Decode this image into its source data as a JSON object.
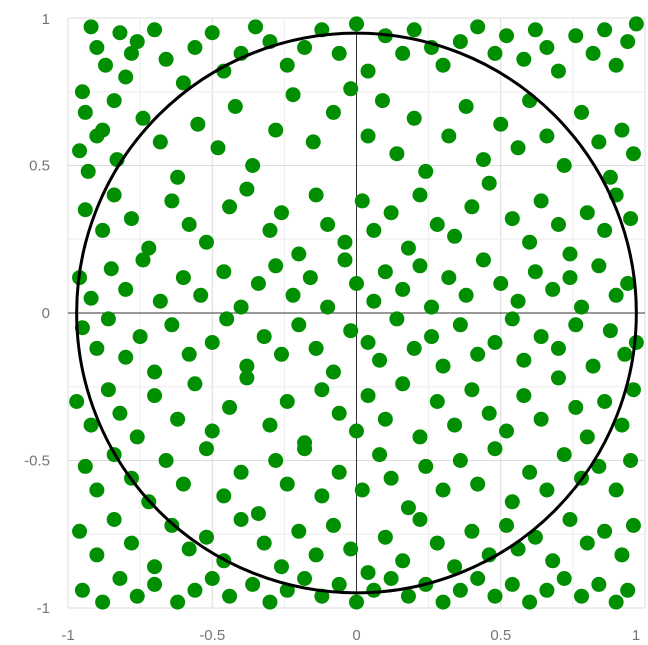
{
  "chart_data": {
    "type": "scatter",
    "title": "",
    "xlabel": "",
    "ylabel": "",
    "xlim": [
      -1,
      1
    ],
    "ylim": [
      -1,
      1
    ],
    "grid": true,
    "x_ticks": [
      {
        "value": -1,
        "label": "-1"
      },
      {
        "value": -0.5,
        "label": "-0.5"
      },
      {
        "value": 0,
        "label": "0"
      },
      {
        "value": 0.5,
        "label": "0.5"
      },
      {
        "value": 1,
        "label": "1"
      }
    ],
    "y_ticks": [
      {
        "value": 1,
        "label": "1"
      },
      {
        "value": 0.5,
        "label": "0.5"
      },
      {
        "value": 0,
        "label": "0"
      },
      {
        "value": -0.5,
        "label": "-0.5"
      },
      {
        "value": -1,
        "label": "-1"
      }
    ],
    "point_color": "#008f00",
    "circle": {
      "center": [
        0,
        0
      ],
      "radius": 0.97,
      "color": "#000000"
    },
    "series": [
      {
        "x": [
          -0.92,
          -0.9,
          -0.87,
          -0.82,
          -0.78,
          -0.95,
          -0.94,
          -0.9,
          -0.84,
          -0.8,
          -0.76,
          -0.7,
          -0.66,
          -0.6,
          -0.56,
          -0.5,
          -0.46,
          -0.4,
          -0.35,
          -0.3,
          -0.24,
          -0.18,
          -0.12,
          -0.06,
          0.0,
          0.04,
          0.1,
          0.16,
          0.2,
          0.26,
          0.3,
          0.36,
          0.42,
          0.48,
          0.52,
          0.58,
          0.62,
          0.66,
          0.7,
          0.76,
          0.82,
          0.86,
          0.9,
          0.94,
          0.97,
          -0.96,
          -0.93,
          -0.88,
          -0.83,
          -0.74,
          -0.68,
          -0.62,
          -0.55,
          -0.48,
          -0.42,
          -0.36,
          -0.28,
          -0.22,
          -0.15,
          -0.08,
          -0.02,
          0.04,
          0.09,
          0.14,
          0.2,
          0.24,
          0.32,
          0.38,
          0.44,
          0.5,
          0.56,
          0.6,
          0.66,
          0.72,
          0.78,
          0.84,
          0.88,
          0.92,
          0.96,
          -0.94,
          -0.88,
          -0.84,
          -0.78,
          -0.72,
          -0.64,
          -0.58,
          -0.52,
          -0.44,
          -0.38,
          -0.3,
          -0.26,
          -0.2,
          -0.14,
          -0.1,
          -0.04,
          0.02,
          0.06,
          0.12,
          0.18,
          0.22,
          0.28,
          0.34,
          0.4,
          0.46,
          0.54,
          0.6,
          0.64,
          0.7,
          0.74,
          0.8,
          0.86,
          0.9,
          0.95,
          -0.96,
          -0.92,
          -0.85,
          -0.8,
          -0.74,
          -0.68,
          -0.6,
          -0.54,
          -0.46,
          -0.4,
          -0.34,
          -0.28,
          -0.22,
          -0.16,
          -0.1,
          -0.04,
          0.0,
          0.06,
          0.1,
          0.16,
          0.22,
          0.26,
          0.32,
          0.38,
          0.44,
          0.5,
          0.56,
          0.62,
          0.68,
          0.74,
          0.78,
          0.84,
          0.9,
          0.94,
          -0.95,
          -0.9,
          -0.86,
          -0.8,
          -0.75,
          -0.7,
          -0.64,
          -0.58,
          -0.5,
          -0.45,
          -0.38,
          -0.32,
          -0.26,
          -0.2,
          -0.14,
          -0.08,
          -0.02,
          0.04,
          0.08,
          0.14,
          0.2,
          0.26,
          0.3,
          0.36,
          0.42,
          0.48,
          0.54,
          0.58,
          0.64,
          0.7,
          0.76,
          0.82,
          0.88,
          0.93,
          0.97,
          -0.97,
          -0.92,
          -0.86,
          -0.82,
          -0.76,
          -0.7,
          -0.62,
          -0.56,
          -0.5,
          -0.44,
          -0.38,
          -0.3,
          -0.24,
          -0.18,
          -0.12,
          -0.06,
          0.0,
          0.04,
          0.1,
          0.16,
          0.22,
          0.28,
          0.34,
          0.4,
          0.46,
          0.52,
          0.58,
          0.64,
          0.7,
          0.76,
          0.8,
          0.86,
          0.92,
          0.96,
          -0.94,
          -0.9,
          -0.84,
          -0.78,
          -0.72,
          -0.66,
          -0.6,
          -0.52,
          -0.46,
          -0.4,
          -0.34,
          -0.28,
          -0.24,
          -0.18,
          -0.12,
          -0.06,
          0.02,
          0.08,
          0.12,
          0.18,
          0.24,
          0.3,
          0.36,
          0.42,
          0.48,
          0.54,
          0.6,
          0.66,
          0.72,
          0.78,
          0.84,
          0.9,
          0.95,
          -0.96,
          -0.9,
          -0.84,
          -0.78,
          -0.7,
          -0.64,
          -0.58,
          -0.52,
          -0.46,
          -0.4,
          -0.32,
          -0.26,
          -0.2,
          -0.14,
          -0.08,
          -0.02,
          0.04,
          0.1,
          0.16,
          0.22,
          0.28,
          0.34,
          0.4,
          0.46,
          0.52,
          0.56,
          0.62,
          0.68,
          0.74,
          0.8,
          0.86,
          0.92,
          0.96,
          -0.95,
          -0.88,
          -0.82,
          -0.76,
          -0.7,
          -0.62,
          -0.56,
          -0.5,
          -0.44,
          -0.36,
          -0.3,
          -0.24,
          -0.18,
          -0.12,
          -0.06,
          0.0,
          0.06,
          0.12,
          0.18,
          0.24,
          0.3,
          0.36,
          0.42,
          0.48,
          0.54,
          0.6,
          0.66,
          0.72,
          0.78,
          0.84,
          0.9,
          0.94
        ],
        "y": [
          0.97,
          0.9,
          0.84,
          0.95,
          0.88,
          0.75,
          0.68,
          0.6,
          0.72,
          0.8,
          0.92,
          0.96,
          0.86,
          0.78,
          0.9,
          0.95,
          0.82,
          0.88,
          0.97,
          0.92,
          0.84,
          0.9,
          0.96,
          0.88,
          0.98,
          0.82,
          0.94,
          0.88,
          0.96,
          0.9,
          0.84,
          0.92,
          0.97,
          0.88,
          0.94,
          0.86,
          0.96,
          0.9,
          0.82,
          0.94,
          0.88,
          0.96,
          0.84,
          0.92,
          0.98,
          0.55,
          0.48,
          0.62,
          0.52,
          0.66,
          0.58,
          0.46,
          0.64,
          0.56,
          0.7,
          0.5,
          0.62,
          0.74,
          0.58,
          0.68,
          0.76,
          0.6,
          0.72,
          0.54,
          0.66,
          0.48,
          0.6,
          0.7,
          0.52,
          0.64,
          0.56,
          0.72,
          0.6,
          0.5,
          0.68,
          0.58,
          0.46,
          0.62,
          0.54,
          0.35,
          0.28,
          0.4,
          0.32,
          0.22,
          0.38,
          0.3,
          0.24,
          0.36,
          0.42,
          0.28,
          0.34,
          0.2,
          0.4,
          0.3,
          0.24,
          0.38,
          0.28,
          0.34,
          0.22,
          0.4,
          0.3,
          0.26,
          0.36,
          0.44,
          0.32,
          0.24,
          0.38,
          0.3,
          0.2,
          0.34,
          0.28,
          0.4,
          0.32,
          0.12,
          0.05,
          0.15,
          0.08,
          0.18,
          0.04,
          0.12,
          0.06,
          0.14,
          0.02,
          0.1,
          0.16,
          0.06,
          0.12,
          0.02,
          0.18,
          0.1,
          0.04,
          0.14,
          0.08,
          0.16,
          0.02,
          0.12,
          0.06,
          0.18,
          0.1,
          0.04,
          0.14,
          0.08,
          0.12,
          0.02,
          0.16,
          0.06,
          0.1,
          -0.05,
          -0.12,
          -0.02,
          -0.15,
          -0.08,
          -0.2,
          -0.04,
          -0.14,
          -0.1,
          -0.02,
          -0.18,
          -0.08,
          -0.14,
          -0.04,
          -0.12,
          -0.2,
          -0.06,
          -0.1,
          -0.16,
          -0.02,
          -0.12,
          -0.08,
          -0.18,
          -0.04,
          -0.14,
          -0.1,
          -0.02,
          -0.16,
          -0.08,
          -0.12,
          -0.04,
          -0.18,
          -0.06,
          -0.14,
          -0.1,
          -0.3,
          -0.38,
          -0.26,
          -0.34,
          -0.42,
          -0.28,
          -0.36,
          -0.24,
          -0.4,
          -0.32,
          -0.22,
          -0.38,
          -0.3,
          -0.44,
          -0.26,
          -0.34,
          -0.4,
          -0.28,
          -0.36,
          -0.24,
          -0.42,
          -0.3,
          -0.38,
          -0.26,
          -0.34,
          -0.4,
          -0.28,
          -0.36,
          -0.22,
          -0.32,
          -0.42,
          -0.3,
          -0.38,
          -0.26,
          -0.52,
          -0.6,
          -0.48,
          -0.56,
          -0.64,
          -0.5,
          -0.58,
          -0.46,
          -0.62,
          -0.54,
          -0.68,
          -0.5,
          -0.58,
          -0.46,
          -0.62,
          -0.54,
          -0.6,
          -0.48,
          -0.56,
          -0.66,
          -0.52,
          -0.6,
          -0.5,
          -0.58,
          -0.46,
          -0.64,
          -0.54,
          -0.6,
          -0.48,
          -0.56,
          -0.52,
          -0.6,
          -0.5,
          -0.74,
          -0.82,
          -0.7,
          -0.78,
          -0.86,
          -0.72,
          -0.8,
          -0.76,
          -0.84,
          -0.7,
          -0.78,
          -0.86,
          -0.74,
          -0.82,
          -0.72,
          -0.8,
          -0.88,
          -0.76,
          -0.84,
          -0.7,
          -0.78,
          -0.86,
          -0.74,
          -0.82,
          -0.72,
          -0.8,
          -0.76,
          -0.84,
          -0.7,
          -0.78,
          -0.74,
          -0.82,
          -0.72,
          -0.94,
          -0.98,
          -0.9,
          -0.96,
          -0.92,
          -0.98,
          -0.94,
          -0.9,
          -0.96,
          -0.92,
          -0.98,
          -0.94,
          -0.9,
          -0.96,
          -0.92,
          -0.98,
          -0.94,
          -0.9,
          -0.96,
          -0.92,
          -0.98,
          -0.94,
          -0.9,
          -0.96,
          -0.92,
          -0.98,
          -0.94,
          -0.9,
          -0.96,
          -0.92,
          -0.98,
          -0.94
        ]
      }
    ]
  }
}
